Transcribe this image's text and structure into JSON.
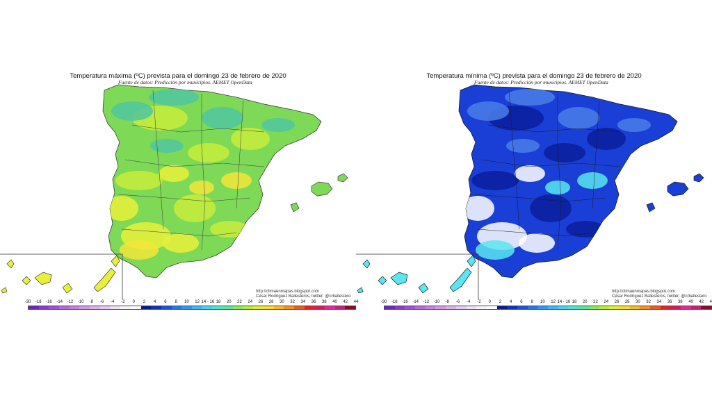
{
  "maps": [
    {
      "id": "max",
      "title": "Temperatura máxima (ºC) prevista para el domingo 23 de febrero de 2020",
      "subtitle": "Fuente de datos: Predicción por municipios. AEMET OpenData",
      "credit_url": "http://climaenmapas.blogspot.com",
      "credit_author": "César Rodríguez Ballesteros, twitter: @crballestero",
      "palette": {
        "base": "#7ed957",
        "patch_a": "#c8ec3a",
        "patch_b": "#e8f03a",
        "patch_c": "#4fc6a0",
        "patch_d": "#f3e53a",
        "border": "#3a3a3a"
      }
    },
    {
      "id": "min",
      "title": "Temperatura mínima (ºC) prevista para el domingo 23 de febrero de 2020",
      "subtitle": "Fuente de datos: Predicción por municipios. AEMET OpenData",
      "credit_url": "http://climaenmapas.blogspot.com",
      "credit_author": "César Rodríguez Ballesteros, twitter: @crballestero",
      "palette": {
        "base": "#1a3fd6",
        "patch_a": "#0c1f9e",
        "patch_b": "#ffffff",
        "patch_c": "#4a7ee8",
        "patch_d": "#59e6f0",
        "border": "#1a1a1a"
      }
    }
  ],
  "legend": {
    "labels": [
      "-30",
      "-18",
      "-16",
      "-14",
      "-12",
      "-10",
      "-8",
      "-6",
      "-4",
      "-2",
      "0",
      "2",
      "4",
      "6",
      "8",
      "10",
      "12",
      "14 - 16",
      "18",
      "20",
      "22",
      "24",
      "26",
      "28",
      "30",
      "32",
      "34",
      "36",
      "38",
      "40",
      "42",
      "44"
    ],
    "colors": [
      "#6a2ab8",
      "#8a3cc8",
      "#a24fd4",
      "#b866dc",
      "#c77ee2",
      "#d398e8",
      "#dcb0ee",
      "#e6c8f2",
      "#efdff7",
      "#f8f2fb",
      "#ffffff",
      "#0a1a8c",
      "#1232b8",
      "#1e52d8",
      "#2e72e8",
      "#3a92f0",
      "#44b4f4",
      "#4cd0ee",
      "#4ee4cc",
      "#5ce49a",
      "#8ae85a",
      "#b8ec3a",
      "#e2ee32",
      "#f6dc2c",
      "#f8b82a",
      "#f4902a",
      "#ec5a26",
      "#e42222",
      "#d81a5a",
      "#e02a9c",
      "#c8207a",
      "#8a0a2a"
    ]
  }
}
